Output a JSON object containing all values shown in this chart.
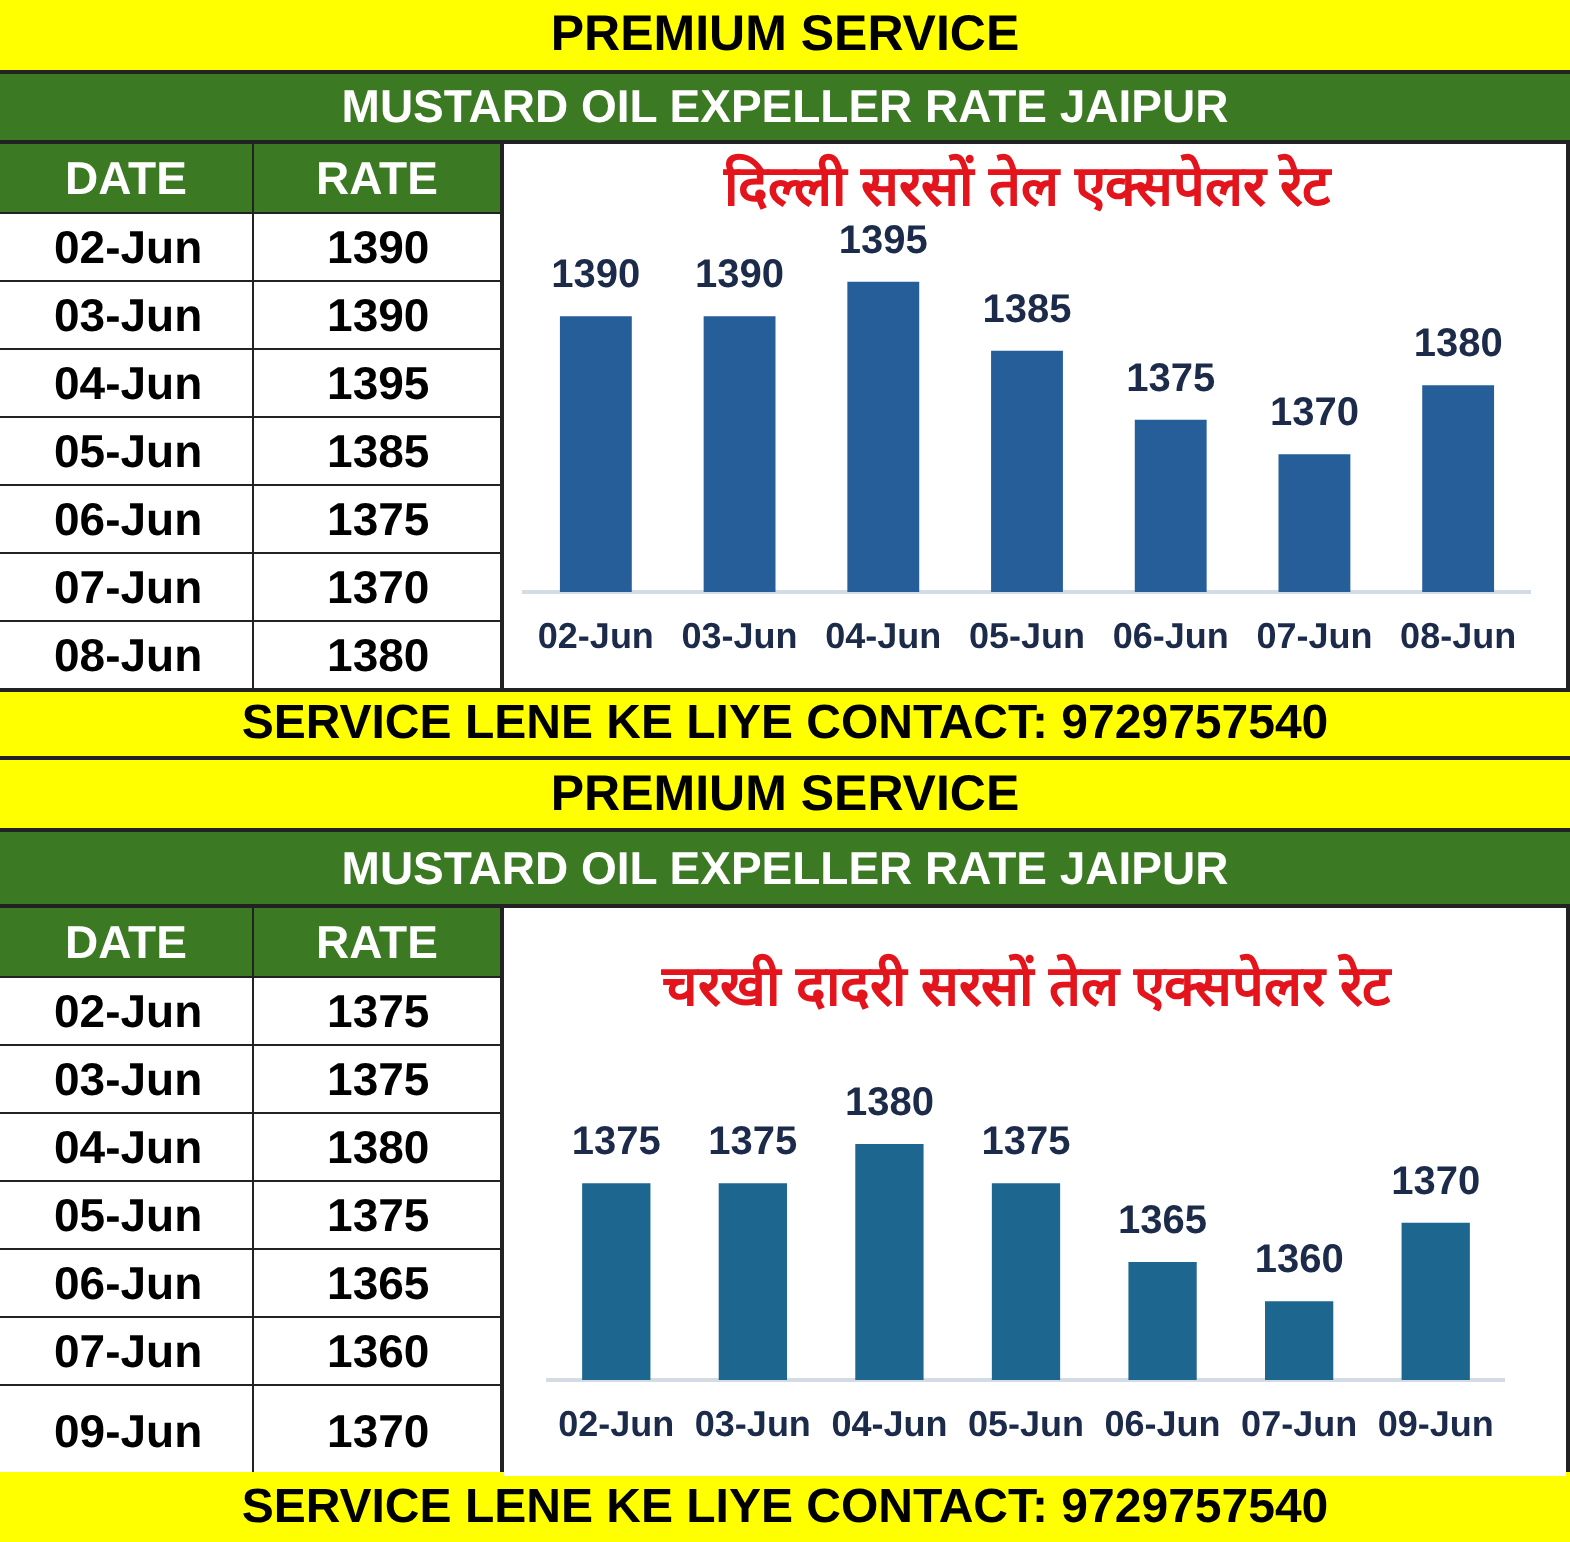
{
  "chart_data": [
    {
      "type": "other",
      "annotations": [
        "PREMIUM SERVICE",
        "MUSTARD OIL EXPELLER RATE JAIPUR",
        "DATE",
        "RATE",
        "02-Jun 1390",
        "03-Jun 1390",
        "04-Jun 1395",
        "05-Jun 1385",
        "06-Jun 1375",
        "07-Jun 1370",
        "08-Jun 1380",
        "SERVICE LENE KE LIYE CONTACT: 9729757540"
      ]
    },
    {
      "type": "bar",
      "title": "दिल्ली सरसों तेल एक्सपेलर रेट",
      "categories": [
        "02-Jun",
        "03-Jun",
        "04-Jun",
        "05-Jun",
        "06-Jun",
        "07-Jun",
        "08-Jun"
      ],
      "values": [
        1390,
        1390,
        1395,
        1385,
        1375,
        1370,
        1380
      ],
      "color": "#255e99",
      "ylim": [
        1350,
        1415
      ],
      "data_labels": true,
      "tick_labels": "x"
    },
    {
      "type": "other",
      "annotations": [
        "PREMIUM SERVICE",
        "MUSTARD OIL EXPELLER RATE JAIPUR",
        "DATE",
        "RATE",
        "02-Jun 1375",
        "03-Jun 1375",
        "04-Jun 1380",
        "05-Jun 1375",
        "06-Jun 1365",
        "07-Jun 1360",
        "09-Jun 1370",
        "SERVICE LENE KE LIYE CONTACT: 9729757540"
      ]
    },
    {
      "type": "bar",
      "title": "चरखी दादरी सरसों तेल एक्सपेलर रेट",
      "categories": [
        "02-Jun",
        "03-Jun",
        "04-Jun",
        "05-Jun",
        "06-Jun",
        "07-Jun",
        "09-Jun"
      ],
      "values": [
        1375,
        1375,
        1380,
        1375,
        1365,
        1360,
        1370
      ],
      "color": "#1d6690",
      "ylim": [
        1350,
        1410
      ],
      "data_labels": true,
      "tick_labels": "x"
    }
  ]
}
